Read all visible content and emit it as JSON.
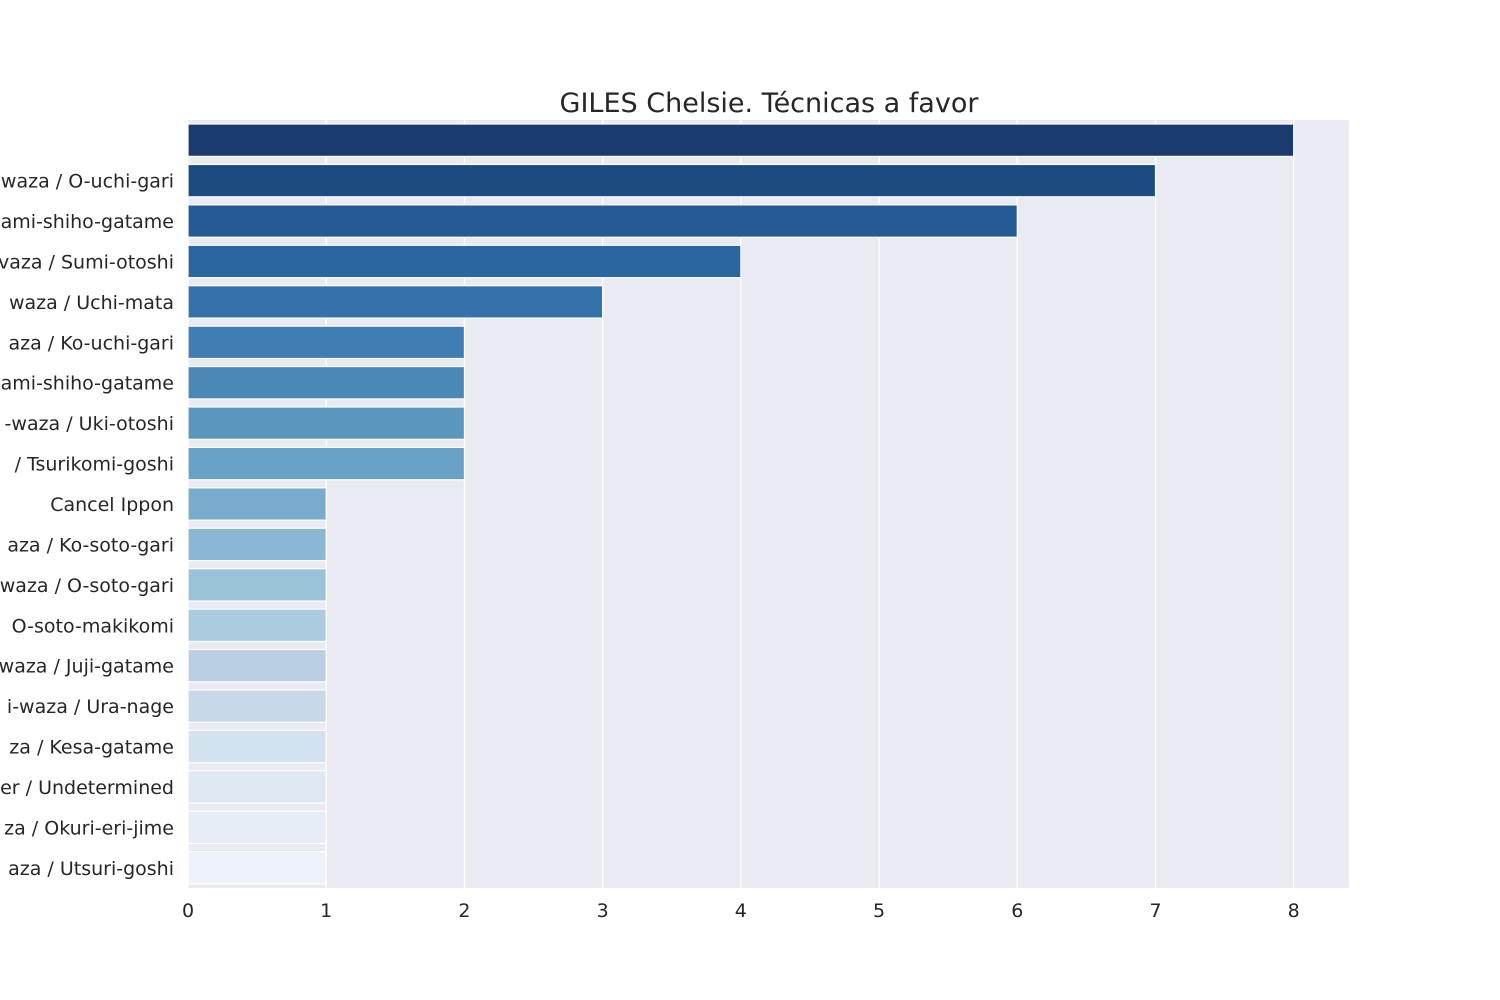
{
  "chart_data": {
    "type": "bar",
    "orientation": "horizontal",
    "title": "GILES Chelsie. Técnicas a favor",
    "xlabel": "",
    "ylabel": "",
    "xlim": [
      0,
      8.4
    ],
    "x_ticks": [
      0,
      1,
      2,
      3,
      4,
      5,
      6,
      7,
      8
    ],
    "grid": true,
    "categories": [
      "",
      "waza / O-uchi-gari",
      "ami-shiho-gatame",
      "vaza / Sumi-otoshi",
      "waza / Uchi-mata",
      "aza / Ko-uchi-gari",
      "ami-shiho-gatame",
      "-waza / Uki-otoshi",
      "/ Tsurikomi-goshi",
      "Cancel Ippon",
      "aza / Ko-soto-gari",
      "waza / O-soto-gari",
      "O-soto-makikomi",
      "waza / Juji-gatame",
      "i-waza / Ura-nage",
      "za / Kesa-gatame",
      "er / Undetermined",
      "za / Okuri-eri-jime",
      "aza / Utsuri-goshi"
    ],
    "values": [
      8,
      7,
      6,
      4,
      3,
      2,
      2,
      2,
      2,
      1,
      1,
      1,
      1,
      1,
      1,
      1,
      1,
      1,
      1
    ],
    "colors": [
      "#1b3b6f",
      "#1c4b82",
      "#235a94",
      "#2a67a0",
      "#3672aa",
      "#3f7db3",
      "#4a88b7",
      "#5b96be",
      "#6aa1c7",
      "#7aabcd",
      "#8ab7d4",
      "#9bc3d8",
      "#aaccde",
      "#bacfe3",
      "#c7d9e9",
      "#d3e2ef",
      "#dde8f2",
      "#e5eef6",
      "#eef3fa"
    ],
    "plot_background": "#eaeaf2",
    "grid_color": "#ffffff",
    "text_color": "#262626"
  }
}
